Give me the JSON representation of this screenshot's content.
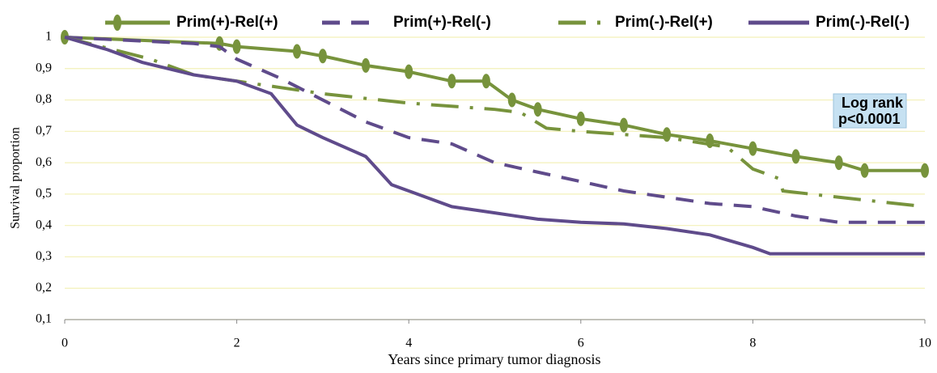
{
  "chart_data": {
    "type": "line",
    "x_label": "Years since primary tumor diagnosis",
    "y_label": "Survival proportion",
    "annotation": [
      "Log rank",
      "p<0.0001"
    ],
    "xlim": [
      0,
      10
    ],
    "xticks": [
      0,
      2,
      4,
      6,
      8,
      10
    ],
    "ylim": [
      0.1,
      1
    ],
    "yticks": [
      {
        "value": 0.1,
        "label": "0,1"
      },
      {
        "value": 0.2,
        "label": "0,2"
      },
      {
        "value": 0.3,
        "label": "0,3"
      },
      {
        "value": 0.4,
        "label": "0,4"
      },
      {
        "value": 0.5,
        "label": "0,5"
      },
      {
        "value": 0.6,
        "label": "0,6"
      },
      {
        "value": 0.7,
        "label": "0,7"
      },
      {
        "value": 0.8,
        "label": "0,8"
      },
      {
        "value": 0.9,
        "label": "0,9"
      },
      1
    ],
    "grid": true,
    "series": [
      {
        "name": "Prim(+)-Rel(+)",
        "color": "#77933c",
        "style": "solid",
        "markers": true,
        "x": [
          0,
          1.8,
          2,
          2.7,
          3,
          3.5,
          4,
          4.5,
          4.9,
          5.2,
          5.5,
          6,
          6.5,
          7,
          7.5,
          8,
          8.5,
          9,
          9.3,
          10
        ],
        "values": [
          1,
          0.98,
          0.97,
          0.955,
          0.94,
          0.91,
          0.89,
          0.86,
          0.86,
          0.8,
          0.77,
          0.74,
          0.72,
          0.69,
          0.67,
          0.645,
          0.62,
          0.6,
          0.575,
          0.575
        ]
      },
      {
        "name": "Prim(+)-Rel(-)",
        "color": "#5f4b8b",
        "style": "dashed",
        "markers": false,
        "x": [
          0,
          1.5,
          1.8,
          2,
          2.5,
          3,
          3.5,
          4,
          4.5,
          5,
          5.5,
          6,
          6.5,
          7,
          7.5,
          8,
          8.5,
          9,
          10
        ],
        "values": [
          1,
          0.98,
          0.97,
          0.93,
          0.87,
          0.8,
          0.73,
          0.68,
          0.66,
          0.6,
          0.57,
          0.54,
          0.51,
          0.49,
          0.47,
          0.46,
          0.43,
          0.41,
          0.41
        ]
      },
      {
        "name": "Prim(-)-Rel(+)",
        "color": "#77933c",
        "style": "dashdot",
        "markers": false,
        "x": [
          0,
          1,
          1.5,
          2,
          2.5,
          3,
          4,
          5,
          5.3,
          5.6,
          6,
          6.5,
          7,
          7.7,
          8,
          8.3,
          8.35,
          9,
          10
        ],
        "values": [
          1,
          0.93,
          0.88,
          0.86,
          0.84,
          0.82,
          0.79,
          0.77,
          0.76,
          0.71,
          0.7,
          0.69,
          0.68,
          0.65,
          0.58,
          0.55,
          0.51,
          0.49,
          0.46
        ]
      },
      {
        "name": "Prim(-)-Rel(-)",
        "color": "#5f4b8b",
        "style": "solid",
        "markers": false,
        "x": [
          0,
          0.5,
          0.9,
          1.5,
          2,
          2.4,
          2.7,
          3,
          3.5,
          3.8,
          4,
          4.5,
          5,
          5.5,
          6,
          6.5,
          7,
          7.5,
          8,
          8.2,
          10
        ],
        "values": [
          1,
          0.96,
          0.92,
          0.88,
          0.86,
          0.82,
          0.72,
          0.68,
          0.62,
          0.53,
          0.51,
          0.46,
          0.44,
          0.42,
          0.41,
          0.405,
          0.39,
          0.37,
          0.33,
          0.31,
          0.31
        ]
      }
    ]
  }
}
